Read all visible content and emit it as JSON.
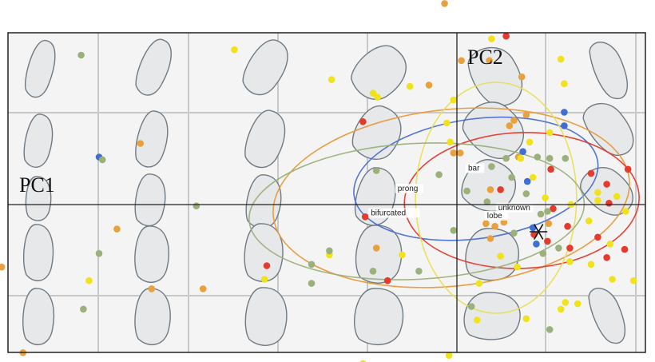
{
  "chart_data": {
    "type": "scatter",
    "title": "",
    "xlabel": "PC1",
    "ylabel": "PC2",
    "grid": true,
    "legend": "none",
    "colors": {
      "background": "#f4f4f4",
      "grid": "#c8c8c8",
      "frame": "#222222",
      "shape_fill": "#e6e8ea",
      "shape_stroke": "#6f7a82"
    },
    "annotations": [
      {
        "text": "prong",
        "x": -0.53,
        "y": 0.1
      },
      {
        "text": "bar",
        "x": 0.1,
        "y": 0.25
      },
      {
        "text": "bifurcated",
        "x": -0.77,
        "y": -0.08
      },
      {
        "text": "unknown",
        "x": 0.37,
        "y": -0.04
      },
      {
        "text": "lobe",
        "x": 0.27,
        "y": -0.1
      }
    ],
    "centroid_marker": {
      "x": 0.73,
      "y": -0.2
    },
    "series": [
      {
        "color": "#e8a13c",
        "points": [
          [
            -4.68,
            -0.07
          ],
          [
            -4.07,
            -0.46
          ],
          [
            -3.04,
            -0.18
          ],
          [
            -2.83,
            0.45
          ],
          [
            -2.73,
            -0.62
          ],
          [
            -2.27,
            -0.62
          ],
          [
            -0.72,
            -0.32
          ],
          [
            -1.1,
            -1.25
          ],
          [
            -0.11,
            1.48
          ],
          [
            -0.03,
            0.38
          ],
          [
            0.03,
            0.38
          ],
          [
            0.04,
            1.06
          ],
          [
            -0.25,
            0.88
          ],
          [
            0.29,
            1.06
          ],
          [
            0.3,
            0.11
          ],
          [
            0.47,
            0.58
          ],
          [
            0.51,
            0.62
          ],
          [
            0.55,
            0.35
          ],
          [
            0.58,
            0.94
          ],
          [
            0.62,
            0.66
          ],
          [
            0.82,
            -0.14
          ],
          [
            0.26,
            -0.14
          ],
          [
            0.34,
            -0.16
          ],
          [
            0.42,
            -0.13
          ],
          [
            0.3,
            -0.25
          ],
          [
            -3.88,
            -1.09
          ]
        ]
      },
      {
        "color": "#e53a2e",
        "points": [
          [
            -0.84,
            0.61
          ],
          [
            -0.82,
            -0.09
          ],
          [
            -1.7,
            -0.45
          ],
          [
            -0.62,
            -0.56
          ],
          [
            0.44,
            1.24
          ],
          [
            0.39,
            0.11
          ],
          [
            0.84,
            0.26
          ],
          [
            0.86,
            -0.03
          ],
          [
            0.81,
            -0.27
          ],
          [
            0.99,
            -0.16
          ],
          [
            1.01,
            -0.32
          ],
          [
            1.2,
            0.23
          ],
          [
            1.34,
            0.15
          ],
          [
            1.53,
            0.26
          ],
          [
            1.36,
            0.01
          ],
          [
            1.26,
            -0.24
          ],
          [
            1.34,
            -0.39
          ],
          [
            1.5,
            -0.33
          ],
          [
            0.69,
            -0.22
          ]
        ]
      },
      {
        "color": "#f0e21c",
        "points": [
          [
            -1.99,
            1.14
          ],
          [
            -1.12,
            0.92
          ],
          [
            -0.75,
            0.82
          ],
          [
            -0.71,
            0.79
          ],
          [
            -0.42,
            0.87
          ],
          [
            -0.03,
            0.77
          ],
          [
            0.31,
            1.22
          ],
          [
            0.93,
            1.07
          ],
          [
            0.96,
            0.89
          ],
          [
            0.65,
            0.46
          ],
          [
            0.83,
            0.53
          ],
          [
            -0.09,
            0.6
          ],
          [
            -0.06,
            0.46
          ],
          [
            0.57,
            0.34
          ],
          [
            0.68,
            0.2
          ],
          [
            0.79,
            0.05
          ],
          [
            1.02,
            0.0
          ],
          [
            1.26,
            0.03
          ],
          [
            1.26,
            0.09
          ],
          [
            1.43,
            0.06
          ],
          [
            1.51,
            -0.05
          ],
          [
            1.37,
            -0.29
          ],
          [
            0.39,
            -0.38
          ],
          [
            0.54,
            -0.46
          ],
          [
            1.01,
            -0.42
          ],
          [
            1.2,
            -0.44
          ],
          [
            1.39,
            -0.55
          ],
          [
            1.58,
            -0.56
          ],
          [
            0.97,
            -0.72
          ],
          [
            0.93,
            -0.77
          ],
          [
            0.62,
            -0.84
          ],
          [
            1.08,
            -0.73
          ],
          [
            0.18,
            -0.85
          ],
          [
            -1.14,
            -0.37
          ],
          [
            -0.49,
            -0.37
          ],
          [
            -1.72,
            -0.55
          ],
          [
            -0.07,
            -1.11
          ],
          [
            -0.74,
            -1.19
          ],
          [
            -0.84,
            -1.17
          ],
          [
            -0.73,
            -1.21
          ],
          [
            -3.29,
            -0.56
          ],
          [
            1.18,
            -0.12
          ],
          [
            0.2,
            -0.58
          ]
        ]
      },
      {
        "color": "#3f6fd6",
        "points": [
          [
            -3.2,
            0.35
          ],
          [
            0.96,
            0.68
          ],
          [
            0.96,
            0.58
          ],
          [
            0.59,
            0.39
          ],
          [
            0.63,
            0.17
          ],
          [
            0.68,
            -0.17
          ],
          [
            0.71,
            -0.29
          ]
        ]
      },
      {
        "color": "#9bb07a",
        "points": [
          [
            -3.36,
            1.1
          ],
          [
            -3.17,
            0.33
          ],
          [
            -3.2,
            -0.36
          ],
          [
            -3.34,
            -0.77
          ],
          [
            -2.33,
            -0.01
          ],
          [
            -1.3,
            -0.44
          ],
          [
            -1.3,
            -0.58
          ],
          [
            -1.14,
            -0.34
          ],
          [
            -0.75,
            -0.49
          ],
          [
            -0.34,
            -0.49
          ],
          [
            -0.72,
            0.25
          ],
          [
            -0.16,
            0.22
          ],
          [
            0.31,
            0.28
          ],
          [
            0.44,
            0.34
          ],
          [
            0.72,
            0.35
          ],
          [
            0.83,
            0.34
          ],
          [
            0.97,
            0.34
          ],
          [
            0.49,
            0.2
          ],
          [
            0.62,
            0.08
          ],
          [
            0.27,
            0.02
          ],
          [
            0.75,
            -0.07
          ],
          [
            0.81,
            -0.05
          ],
          [
            0.91,
            -0.32
          ],
          [
            0.13,
            -0.75
          ],
          [
            0.77,
            -0.36
          ],
          [
            0.83,
            -0.92
          ],
          [
            0.51,
            -0.21
          ],
          [
            0.09,
            0.1
          ],
          [
            -0.03,
            -0.19
          ]
        ]
      }
    ],
    "ellipses": [
      {
        "color": "#4a6fd0",
        "cx": 0.17,
        "cy": 0.19,
        "rx": 1.1,
        "ry": 0.44,
        "angle": -8
      },
      {
        "color": "#e89a3c",
        "cx": -0.05,
        "cy": 0.05,
        "rx": 1.6,
        "ry": 0.65,
        "angle": -6
      },
      {
        "color": "#e53a2e",
        "cx": 0.58,
        "cy": 0.03,
        "rx": 1.05,
        "ry": 0.5,
        "angle": -2
      },
      {
        "color": "#e8df55",
        "cx": 0.35,
        "cy": 0.05,
        "rx": 0.72,
        "ry": 0.85,
        "angle": 0
      },
      {
        "color": "#9bb07a",
        "cx": -0.36,
        "cy": -0.05,
        "rx": 1.5,
        "ry": 0.5,
        "angle": -3
      }
    ]
  }
}
